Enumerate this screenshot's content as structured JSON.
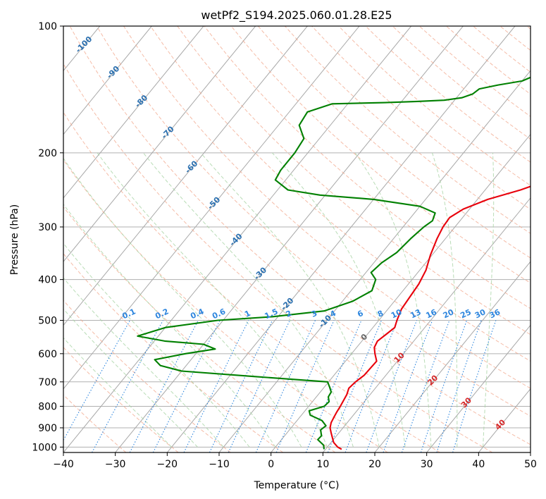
{
  "chart_data": {
    "type": "line",
    "title": "wetPf2_S194.2025.060.01.28.E25",
    "xlabel": "Temperature (°C)",
    "ylabel": "Pressure (hPa)",
    "xlim": [
      -40,
      50
    ],
    "ylim": [
      1030,
      100
    ],
    "y_scale": "log",
    "grid": true,
    "x_ticks": [
      "−40",
      "−30",
      "−20",
      "−10",
      "0",
      "10",
      "20",
      "30",
      "40",
      "50"
    ],
    "y_ticks": [
      "100",
      "200",
      "300",
      "400",
      "500",
      "600",
      "700",
      "800",
      "900",
      "1000"
    ],
    "series": [
      {
        "name": "temperature",
        "color": "#e8000b",
        "points": [
          [
            13.1,
            1012
          ],
          [
            12.0,
            1000
          ],
          [
            10.5,
            975
          ],
          [
            9.5,
            950
          ],
          [
            8.5,
            925
          ],
          [
            7.5,
            900
          ],
          [
            6.9,
            875
          ],
          [
            6.6,
            850
          ],
          [
            6.3,
            825
          ],
          [
            6.1,
            800
          ],
          [
            5.8,
            775
          ],
          [
            5.5,
            750
          ],
          [
            4.9,
            725
          ],
          [
            5.2,
            700
          ],
          [
            5.8,
            675
          ],
          [
            5.9,
            650
          ],
          [
            6.0,
            625
          ],
          [
            4.5,
            600
          ],
          [
            3.4,
            580
          ],
          [
            3.0,
            560
          ],
          [
            3.6,
            540
          ],
          [
            4.2,
            520
          ],
          [
            3.5,
            500
          ],
          [
            2.6,
            470
          ],
          [
            2.3,
            440
          ],
          [
            2.0,
            410
          ],
          [
            1.2,
            380
          ],
          [
            -0.3,
            350
          ],
          [
            -1.6,
            320
          ],
          [
            -2.3,
            300
          ],
          [
            -2.5,
            285
          ],
          [
            -1.2,
            272
          ],
          [
            2.0,
            258
          ],
          [
            6.8,
            245
          ],
          [
            10.7,
            232
          ],
          [
            13.8,
            215
          ],
          [
            16.0,
            200
          ],
          [
            17.0,
            185
          ],
          [
            18.6,
            170
          ],
          [
            20.1,
            160
          ],
          [
            20.1,
            150
          ],
          [
            20.4,
            140
          ],
          [
            20.5,
            130
          ],
          [
            20.8,
            120
          ],
          [
            21.1,
            112
          ],
          [
            22.0,
            106
          ],
          [
            23.9,
            102
          ],
          [
            25.0,
            100
          ]
        ]
      },
      {
        "name": "dewpoint",
        "color": "#008000",
        "points": [
          [
            9.7,
            1012
          ],
          [
            9.0,
            990
          ],
          [
            7.0,
            960
          ],
          [
            7.1,
            940
          ],
          [
            6.0,
            910
          ],
          [
            6.4,
            890
          ],
          [
            4.8,
            865
          ],
          [
            1.7,
            840
          ],
          [
            0.8,
            820
          ],
          [
            3.0,
            800
          ],
          [
            3.2,
            780
          ],
          [
            2.3,
            760
          ],
          [
            2.1,
            740
          ],
          [
            1.0,
            720
          ],
          [
            -0.2,
            700
          ],
          [
            -15.0,
            680
          ],
          [
            -30.0,
            660
          ],
          [
            -35.0,
            640
          ],
          [
            -37.0,
            620
          ],
          [
            -32.0,
            600
          ],
          [
            -27.0,
            585
          ],
          [
            -30.0,
            570
          ],
          [
            -38.0,
            560
          ],
          [
            -44.0,
            545
          ],
          [
            -40.0,
            520
          ],
          [
            -31.0,
            500
          ],
          [
            -21.0,
            490
          ],
          [
            -12.0,
            475
          ],
          [
            -8.0,
            450
          ],
          [
            -6.0,
            425
          ],
          [
            -7.0,
            400
          ],
          [
            -9.0,
            385
          ],
          [
            -8.5,
            365
          ],
          [
            -7.2,
            345
          ],
          [
            -6.7,
            320
          ],
          [
            -6.0,
            300
          ],
          [
            -5.3,
            290
          ],
          [
            -6.0,
            278
          ],
          [
            -10.0,
            268
          ],
          [
            -20.0,
            258
          ],
          [
            -31.0,
            252
          ],
          [
            -38.0,
            245
          ],
          [
            -42.0,
            232
          ],
          [
            -42.5,
            220
          ],
          [
            -42.5,
            200
          ],
          [
            -43.0,
            185
          ],
          [
            -46.0,
            172
          ],
          [
            -46.5,
            160
          ],
          [
            -43.0,
            153
          ],
          [
            -33.0,
            152
          ],
          [
            -27.0,
            151
          ],
          [
            -22.0,
            150
          ],
          [
            -19.0,
            148
          ],
          [
            -17.5,
            145
          ],
          [
            -17.0,
            141
          ],
          [
            -14.0,
            138
          ],
          [
            -10.0,
            135
          ],
          [
            -8.0,
            130
          ],
          [
            -5.0,
            120
          ],
          [
            -3.5,
            110
          ],
          [
            -1.9,
            104
          ],
          [
            -0.9,
            100
          ]
        ]
      }
    ],
    "dry_adiabat_labels": [
      "-100",
      "-90",
      "-80",
      "-70",
      "-60",
      "-50",
      "-40",
      "-30",
      "-20",
      "-10",
      "0",
      "10",
      "20",
      "30",
      "40"
    ],
    "mixing_ratio_labels": [
      "0.1",
      "0.2",
      "0.4",
      "0.6",
      "1",
      "1.5",
      "2",
      "3",
      "4",
      "6",
      "8",
      "10",
      "13",
      "16",
      "20",
      "25",
      "30",
      "36"
    ]
  }
}
